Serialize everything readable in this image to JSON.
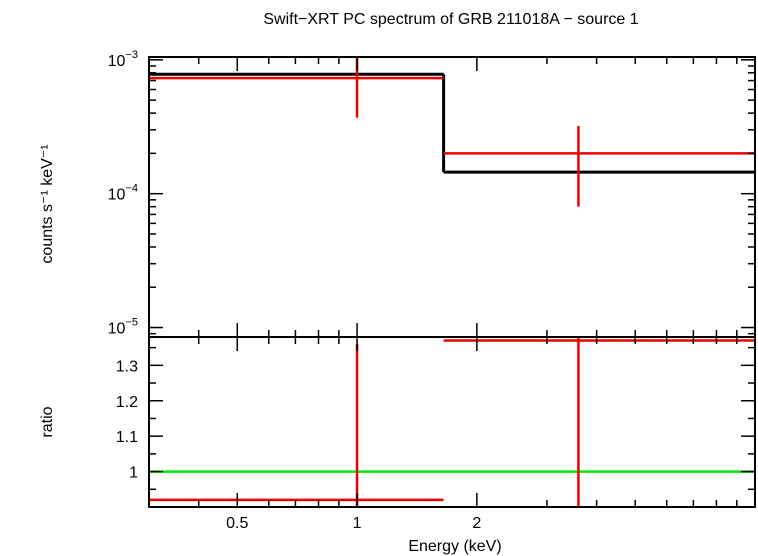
{
  "chart_data": [
    {
      "type": "line",
      "panel": "spectrum",
      "title": "Swift−XRT PC spectrum of GRB 211018A − source 1",
      "ylabel": "counts s⁻¹ keV⁻¹",
      "xlabel": "",
      "xscale": "log",
      "yscale": "log",
      "xlim": [
        0.3,
        10
      ],
      "ylim": [
        8.5e-06,
        0.00105
      ],
      "yticks": [
        {
          "value": 0.001,
          "label": "10",
          "exp": "−3"
        },
        {
          "value": 0.0001,
          "label": "10",
          "exp": "−4"
        },
        {
          "value": 1e-05,
          "label": "10",
          "exp": "−5"
        }
      ],
      "data_points": [
        {
          "x": 1.0,
          "xlo": 0.3,
          "xhi": 1.65,
          "y": 0.00073,
          "ylo": 0.00037,
          "yhi": 0.00105
        },
        {
          "x": 3.6,
          "xlo": 1.65,
          "xhi": 10,
          "y": 0.0002,
          "ylo": 8e-05,
          "yhi": 0.00032
        }
      ],
      "model_steps": [
        {
          "xlo": 0.3,
          "xhi": 1.65,
          "y": 0.00078
        },
        {
          "xlo": 1.65,
          "xhi": 10,
          "y": 0.000145
        }
      ],
      "colors": {
        "data": "#ee0000",
        "model": "#000000"
      }
    },
    {
      "type": "line",
      "panel": "ratio",
      "ylabel": "ratio",
      "xlabel": "Energy (keV)",
      "xscale": "log",
      "xlim": [
        0.3,
        10
      ],
      "ylim": [
        0.9,
        1.38
      ],
      "xticks": [
        {
          "value": 0.5,
          "label": "0.5"
        },
        {
          "value": 1,
          "label": "1"
        },
        {
          "value": 2,
          "label": "2"
        }
      ],
      "yticks": [
        {
          "value": 1,
          "label": "1"
        },
        {
          "value": 1.1,
          "label": "1.1"
        },
        {
          "value": 1.2,
          "label": "1.2"
        },
        {
          "value": 1.3,
          "label": "1.3"
        }
      ],
      "data_points": [
        {
          "x": 1.0,
          "xlo": 0.3,
          "xhi": 1.65,
          "y": 0.92,
          "ylo": 0.9,
          "yhi": 1.36
        },
        {
          "x": 3.6,
          "xlo": 1.65,
          "xhi": 10,
          "y": 1.37,
          "ylo": 0.9,
          "yhi": 1.38
        }
      ],
      "reference_line": 1,
      "colors": {
        "data": "#ee0000",
        "reference": "#00ee00"
      }
    }
  ]
}
